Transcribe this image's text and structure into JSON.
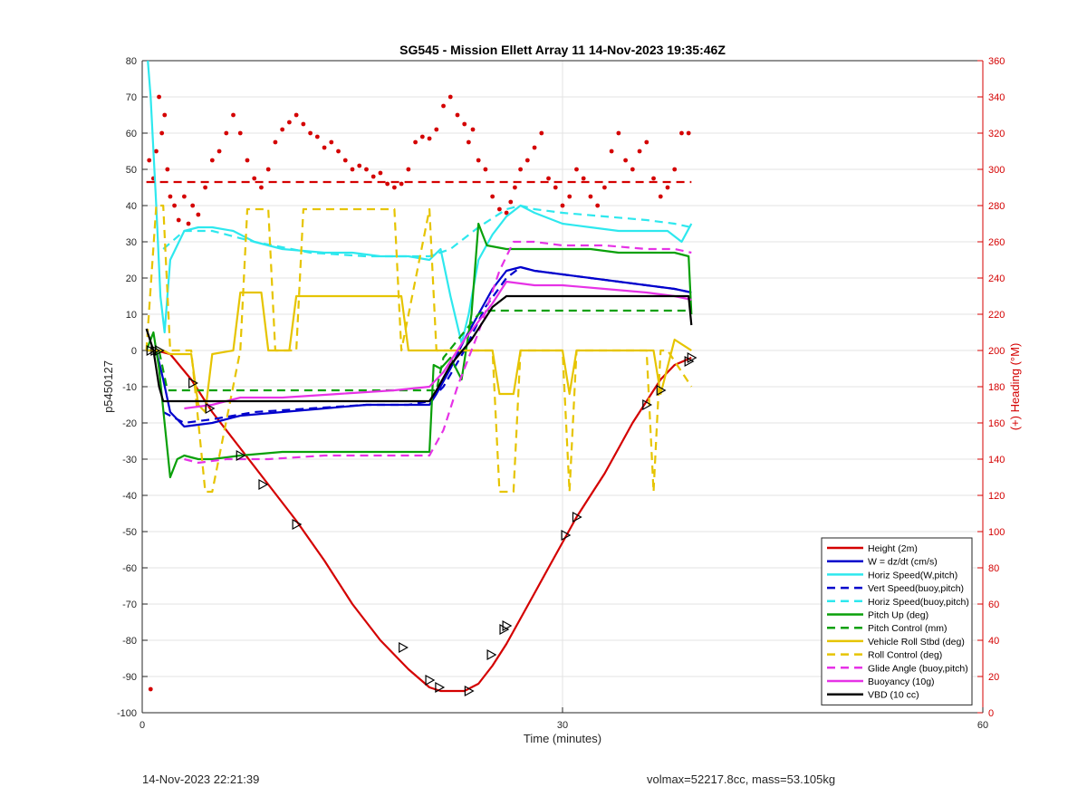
{
  "title": "SG545 - Mission Ellett Array 11 14-Nov-2023 19:35:46Z",
  "footer": {
    "left": "14-Nov-2023 22:21:39",
    "right": "volmax=52217.8cc, mass=53.105kg"
  },
  "colors": {
    "red": "#d40000",
    "blue": "#0000cc",
    "cyan": "#2ee8ee",
    "green": "#0aa00a",
    "yellow": "#e6c400",
    "magenta": "#e632e6",
    "black": "#000000"
  },
  "chart_data": {
    "type": "line",
    "title": "SG545 - Mission Ellett Array 11 14-Nov-2023 19:35:46Z",
    "xlabel": "Time (minutes)",
    "ylabel": "p5450127",
    "y2label": "(+) Heading (°M)",
    "xlim": [
      0,
      60
    ],
    "ylim": [
      -100,
      80
    ],
    "y2lim": [
      0,
      360
    ],
    "xticks": [
      0,
      30,
      60
    ],
    "yticks": [
      -100,
      -90,
      -80,
      -70,
      -60,
      -50,
      -40,
      -30,
      -20,
      -10,
      0,
      10,
      20,
      30,
      40,
      50,
      60,
      70,
      80
    ],
    "y2ticks": [
      0,
      20,
      40,
      60,
      80,
      100,
      120,
      140,
      160,
      180,
      200,
      220,
      240,
      260,
      280,
      300,
      320,
      340,
      360
    ],
    "grid": true,
    "legend_position": "bottom-right",
    "series": [
      {
        "name": "Height (2m)",
        "color": "red",
        "style": "solid",
        "x": [
          0.3,
          1.0,
          2.0,
          3.5,
          5.0,
          7.0,
          9.0,
          11.0,
          13.0,
          15.0,
          17.0,
          19.0,
          20.5,
          21.3,
          22.0,
          23.0,
          24.0,
          25.0,
          26.0,
          27.0,
          28.0,
          29.0,
          30.0,
          31.0,
          32.0,
          33.0,
          34.0,
          35.0,
          36.0,
          37.0,
          38.0,
          39.2
        ],
        "y": [
          0,
          0,
          -1,
          -8,
          -17,
          -27,
          -37,
          -47,
          -58,
          -70,
          -80,
          -88,
          -93,
          -94,
          -94,
          -94,
          -92,
          -87,
          -81,
          -74,
          -67,
          -60,
          -53,
          -46,
          -40,
          -34,
          -27,
          -20,
          -14,
          -8,
          -4,
          -2
        ]
      },
      {
        "name": "W = dz/dt (cm/s)",
        "color": "blue",
        "style": "solid",
        "x": [
          0.3,
          1.0,
          1.5,
          2.0,
          3.0,
          5.0,
          7.0,
          10.0,
          13.0,
          16.0,
          19.0,
          20.5,
          21.0,
          22.0,
          23.0,
          24.0,
          25.0,
          26.0,
          27.0,
          28.0,
          30.0,
          32.0,
          34.0,
          36.0,
          38.0,
          39.2
        ],
        "y": [
          0,
          0,
          -8,
          -17,
          -21,
          -20,
          -18,
          -17,
          -16,
          -15,
          -15,
          -15,
          -12,
          -5,
          3,
          10,
          17,
          22,
          23,
          22,
          21,
          20,
          19,
          18,
          17,
          16
        ]
      },
      {
        "name": "Horiz Speed(W,pitch)",
        "color": "cyan",
        "style": "solid",
        "x": [
          0.4,
          0.6,
          0.8,
          1.0,
          1.3,
          1.6,
          2.0,
          3.0,
          4.0,
          5.0,
          6.5,
          8.0,
          10.0,
          13.0,
          15.0,
          17.0,
          19.0,
          20.5,
          21.3,
          22.0,
          22.8,
          23.3,
          24.0,
          25.0,
          26.0,
          27.0,
          28.0,
          30.0,
          32.0,
          34.0,
          36.0,
          37.5,
          38.5,
          39.2
        ],
        "y": [
          80,
          70,
          55,
          40,
          15,
          5,
          25,
          33,
          34,
          34,
          33,
          30,
          28,
          27,
          27,
          26,
          26,
          25,
          28,
          15,
          2,
          10,
          25,
          32,
          37,
          40,
          38,
          35,
          34,
          33,
          33,
          33,
          30,
          35
        ]
      },
      {
        "name": "Vert Speed(buoy,pitch)",
        "color": "blue",
        "style": "dashed",
        "x": [
          1.5,
          3.0,
          5.0,
          8.0,
          12.0,
          16.0,
          19.0,
          20.5,
          21.5,
          23.0,
          24.5,
          26.0,
          27.0,
          28.0,
          30.0,
          32.0,
          34.0,
          36.0,
          38.0,
          39.2
        ],
        "y": [
          -17,
          -20,
          -19,
          -17,
          -16,
          -15,
          -15,
          -14,
          -10,
          0,
          12,
          20,
          23,
          22,
          21,
          20,
          19,
          18,
          17,
          16
        ]
      },
      {
        "name": "Horiz Speed(buoy,pitch)",
        "color": "cyan",
        "style": "dashed",
        "x": [
          1.5,
          3.0,
          5.0,
          8.0,
          12.0,
          16.0,
          19.0,
          20.5,
          22.0,
          24.0,
          26.0,
          27.0,
          28.0,
          30.0,
          33.0,
          36.0,
          38.0,
          39.2
        ],
        "y": [
          28,
          33,
          33,
          30,
          27,
          26,
          26,
          26,
          28,
          34,
          39,
          40,
          39,
          38,
          37,
          36,
          35,
          34
        ]
      },
      {
        "name": "Pitch Up (deg)",
        "color": "green",
        "style": "solid",
        "x": [
          0.3,
          0.8,
          1.2,
          1.6,
          2.0,
          2.5,
          3.0,
          4.0,
          5.0,
          7.0,
          10.0,
          14.0,
          18.0,
          20.5,
          20.8,
          21.3,
          22.0,
          22.8,
          23.5,
          24.0,
          24.3,
          24.6,
          26.0,
          28.0,
          30.0,
          32.0,
          34.0,
          36.0,
          38.0,
          39.0,
          39.2
        ],
        "y": [
          0,
          5,
          -5,
          -20,
          -35,
          -30,
          -29,
          -30,
          -30,
          -29,
          -28,
          -28,
          -28,
          -28,
          -4,
          -5,
          -2,
          -8,
          10,
          35,
          32,
          29,
          28,
          28,
          28,
          28,
          27,
          27,
          27,
          26,
          10
        ]
      },
      {
        "name": "Pitch Control (mm)",
        "color": "green",
        "style": "dashed",
        "x": [
          0.3,
          1.2,
          1.8,
          21.0,
          21.5,
          24.0,
          24.5,
          39.2
        ],
        "y": [
          0,
          0,
          -11,
          -11,
          -2,
          10,
          11,
          11
        ]
      },
      {
        "name": "Vehicle Roll Stbd (deg)",
        "color": "yellow",
        "style": "solid",
        "x": [
          0.3,
          1.5,
          2.0,
          3.5,
          4.0,
          4.5,
          5.0,
          6.5,
          7.0,
          8.5,
          9.0,
          10.5,
          11.0,
          13.0,
          15.0,
          17.0,
          18.5,
          19.0,
          20.5,
          21.0,
          25.0,
          25.5,
          26.5,
          27.0,
          30.0,
          30.5,
          31.0,
          35.0,
          36.5,
          37.0,
          38.0,
          39.2
        ],
        "y": [
          0,
          0,
          -1,
          -1,
          -15,
          -17,
          -1,
          0,
          16,
          16,
          0,
          0,
          15,
          15,
          15,
          15,
          15,
          0,
          0,
          0,
          0,
          -12,
          -12,
          0,
          0,
          -12,
          0,
          0,
          0,
          -12,
          3,
          0
        ]
      },
      {
        "name": "Roll Control (deg)",
        "color": "yellow",
        "style": "dashed",
        "x": [
          0.3,
          1.0,
          1.5,
          2.0,
          3.5,
          4.5,
          5.0,
          7.0,
          7.5,
          9.0,
          9.5,
          11.0,
          11.5,
          18.0,
          18.5,
          20.5,
          21.0,
          25.0,
          25.5,
          26.5,
          27.0,
          30.0,
          30.5,
          31.0,
          36.0,
          36.5,
          37.0,
          37.5,
          39.2
        ],
        "y": [
          0,
          40,
          40,
          0,
          0,
          -39,
          -39,
          0,
          39,
          39,
          0,
          0,
          39,
          39,
          0,
          39,
          0,
          0,
          -39,
          -39,
          0,
          0,
          -39,
          0,
          0,
          -39,
          0,
          0,
          -10
        ]
      },
      {
        "name": "Glide Angle (buoy,pitch)",
        "color": "magenta",
        "style": "dashed",
        "x": [
          3.0,
          4.0,
          6.0,
          9.0,
          13.0,
          17.0,
          20.5,
          21.5,
          22.5,
          24.0,
          25.5,
          26.5,
          28.0,
          30.0,
          33.0,
          36.0,
          38.0,
          39.2
        ],
        "y": [
          -30,
          -31,
          -30,
          -30,
          -29,
          -29,
          -29,
          -22,
          -10,
          5,
          22,
          30,
          30,
          29,
          29,
          28,
          28,
          27
        ]
      },
      {
        "name": "Buoyancy (10g)",
        "color": "magenta",
        "style": "solid",
        "x": [
          3.0,
          5.0,
          7.0,
          10.0,
          14.0,
          18.0,
          20.5,
          21.5,
          23.0,
          25.0,
          26.0,
          28.0,
          30.0,
          33.0,
          36.0,
          38.0,
          39.2
        ],
        "y": [
          -16,
          -15,
          -13,
          -13,
          -12,
          -11,
          -10,
          -6,
          3,
          13,
          19,
          18,
          18,
          17,
          16,
          15,
          14
        ]
      },
      {
        "name": "VBD (10 cc)",
        "color": "black",
        "style": "solid",
        "x": [
          0.3,
          0.8,
          1.2,
          1.5,
          2.5,
          5.0,
          10.0,
          15.0,
          20.5,
          21.0,
          22.0,
          23.5,
          25.0,
          26.0,
          28.0,
          32.0,
          36.0,
          39.0,
          39.2
        ],
        "y": [
          6,
          0,
          -10,
          -14,
          -14,
          -14,
          -14,
          -14,
          -14,
          -11,
          -4,
          3,
          12,
          15,
          15,
          15,
          15,
          15,
          7
        ]
      },
      {
        "name": "Heading mean",
        "color": "red",
        "style": "dashed",
        "axis": "right",
        "x": [
          0.3,
          39.2
        ],
        "y": [
          293,
          293
        ]
      }
    ],
    "heading_points": {
      "axis": "right",
      "color": "red",
      "x": [
        0.5,
        0.8,
        1.0,
        1.2,
        1.4,
        1.6,
        1.8,
        2.0,
        2.3,
        2.6,
        3.0,
        3.3,
        3.6,
        4.0,
        4.5,
        5.0,
        5.5,
        6.0,
        6.5,
        7.0,
        7.5,
        8.0,
        8.5,
        9.0,
        9.5,
        10.0,
        10.5,
        11.0,
        11.5,
        12.0,
        12.5,
        13.0,
        13.5,
        14.0,
        14.5,
        15.0,
        15.5,
        16.0,
        16.5,
        17.0,
        17.5,
        18.0,
        18.5,
        19.0,
        19.5,
        20.0,
        20.5,
        21.0,
        21.5,
        22.0,
        22.5,
        23.0,
        23.3,
        23.6,
        24.0,
        24.5,
        25.0,
        25.5,
        26.0,
        26.3,
        26.6,
        27.0,
        27.5,
        28.0,
        28.5,
        29.0,
        29.5,
        30.0,
        30.5,
        31.0,
        31.5,
        32.0,
        32.5,
        33.0,
        33.5,
        34.0,
        34.5,
        35.0,
        35.5,
        36.0,
        36.5,
        37.0,
        37.5,
        38.0,
        38.5,
        39.0
      ],
      "y": [
        305,
        295,
        310,
        340,
        320,
        330,
        300,
        285,
        280,
        272,
        285,
        270,
        280,
        275,
        290,
        305,
        310,
        320,
        330,
        320,
        305,
        295,
        290,
        300,
        315,
        322,
        326,
        330,
        325,
        320,
        318,
        312,
        315,
        310,
        305,
        300,
        302,
        300,
        296,
        298,
        292,
        290,
        292,
        300,
        315,
        318,
        317,
        322,
        335,
        340,
        330,
        325,
        315,
        322,
        305,
        300,
        285,
        278,
        276,
        282,
        290,
        300,
        305,
        312,
        320,
        295,
        290,
        280,
        285,
        300,
        295,
        285,
        280,
        290,
        310,
        320,
        305,
        300,
        310,
        315,
        295,
        285,
        290,
        300,
        320,
        320
      ]
    },
    "heading_outlier": {
      "x": 0.6,
      "y": 13
    },
    "markers": {
      "series": "Height (2m)",
      "x": [
        0.6,
        0.9,
        1.2,
        3.6,
        4.8,
        7.0,
        8.6,
        11.0,
        18.6,
        20.5,
        21.2,
        23.3,
        24.9,
        25.8,
        26.0,
        30.2,
        31.0,
        36.0,
        37.0,
        39.0,
        39.2
      ],
      "y": [
        0,
        0,
        0,
        -9,
        -16,
        -29,
        -37,
        -48,
        -82,
        -91,
        -93,
        -94,
        -84,
        -77,
        -76,
        -51,
        -46,
        -15,
        -11,
        -3,
        -2
      ]
    },
    "legend": [
      "Height (2m)",
      "W = dz/dt (cm/s)",
      "Horiz Speed(W,pitch)",
      "Vert Speed(buoy,pitch)",
      "Horiz Speed(buoy,pitch)",
      "Pitch Up (deg)",
      "Pitch Control (mm)",
      "Vehicle Roll Stbd (deg)",
      "Roll Control (deg)",
      "Glide Angle (buoy,pitch)",
      "Buoyancy (10g)",
      "VBD (10 cc)"
    ]
  }
}
